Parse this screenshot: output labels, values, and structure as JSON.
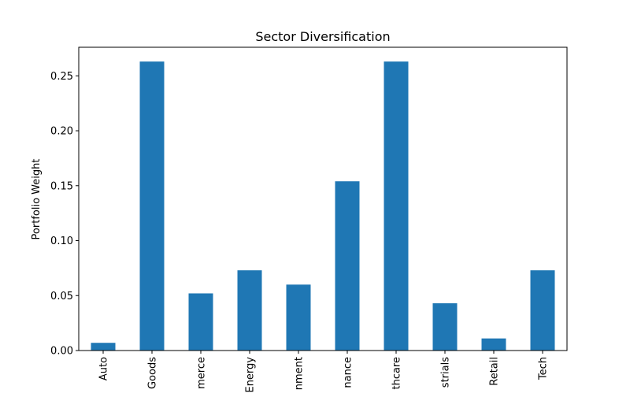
{
  "chart_data": {
    "type": "bar",
    "title": "Sector Diversification",
    "xlabel": "",
    "ylabel": "Portfolio Weight",
    "categories": [
      "Auto",
      "Goods",
      "merce",
      "Energy",
      "nment",
      "nance",
      "thcare",
      "strials",
      "Retail",
      "Tech"
    ],
    "values": [
      0.007,
      0.263,
      0.052,
      0.073,
      0.06,
      0.154,
      0.263,
      0.043,
      0.011,
      0.073
    ],
    "ylim": [
      0,
      0.276
    ],
    "yticks": [
      0.0,
      0.05,
      0.1,
      0.15,
      0.2,
      0.25
    ],
    "ytick_labels": [
      "0.00",
      "0.05",
      "0.10",
      "0.15",
      "0.20",
      "0.25"
    ],
    "bar_color": "#1f77b4",
    "grid": false,
    "legend": "none"
  }
}
